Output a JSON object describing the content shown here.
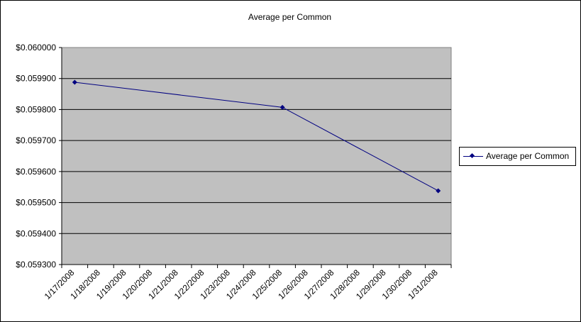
{
  "chart_data": {
    "type": "line",
    "title": "Average per Common",
    "xlabel": "",
    "ylabel": "",
    "categories": [
      "1/17/2008",
      "1/18/2008",
      "1/19/2008",
      "1/20/2008",
      "1/21/2008",
      "1/22/2008",
      "1/23/2008",
      "1/24/2008",
      "1/25/2008",
      "1/26/2008",
      "1/27/2008",
      "1/28/2008",
      "1/29/2008",
      "1/30/2008",
      "1/31/2008"
    ],
    "series": [
      {
        "name": "Average per Common",
        "x": [
          "1/17/2008",
          "1/25/2008",
          "1/31/2008"
        ],
        "values": [
          0.059888,
          0.059807,
          0.059538
        ]
      }
    ],
    "ylim": [
      0.0593,
      0.06
    ],
    "yticks": [
      "$0.059300",
      "$0.059400",
      "$0.059500",
      "$0.059600",
      "$0.059700",
      "$0.059800",
      "$0.059900",
      "$0.060000"
    ],
    "grid": true,
    "legend_position": "right",
    "colors": {
      "plot_background": "#c0c0c0",
      "series": "#000080",
      "gridline": "#000000"
    }
  }
}
